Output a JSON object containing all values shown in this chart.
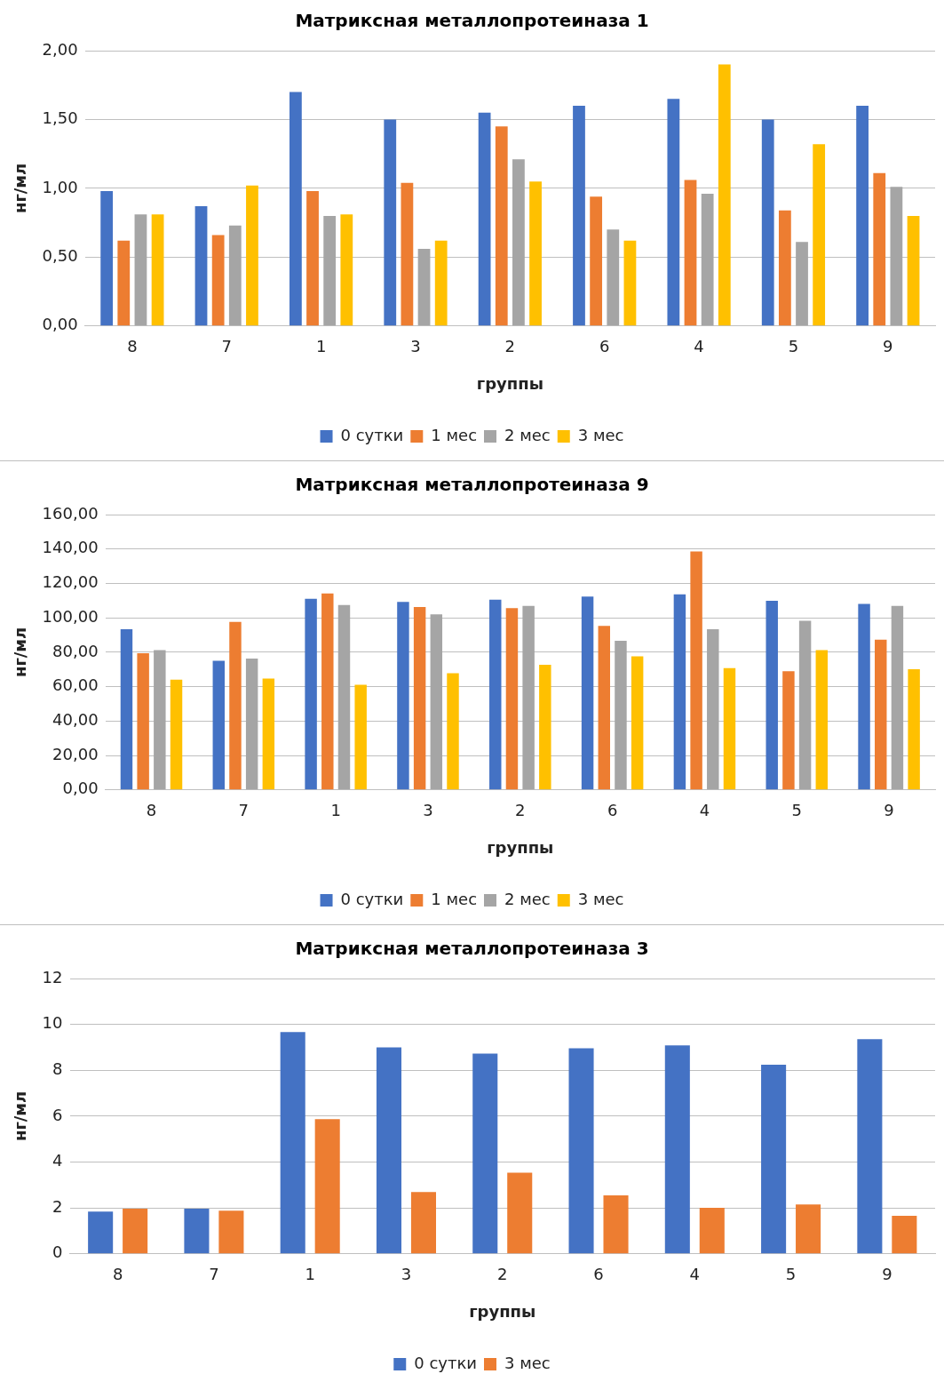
{
  "chart_data": [
    {
      "type": "bar",
      "title": "Матриксная металлопротеиназа 1",
      "xlabel": "группы",
      "ylabel": "нг/мл",
      "categories": [
        "8",
        "7",
        "1",
        "3",
        "2",
        "6",
        "4",
        "5",
        "9"
      ],
      "series": [
        {
          "name": "0 сутки",
          "color": "#4472c4",
          "values": [
            0.98,
            0.87,
            1.7,
            1.5,
            1.55,
            1.6,
            1.65,
            1.5,
            1.6
          ]
        },
        {
          "name": "1 мес",
          "color": "#ed7d31",
          "values": [
            0.62,
            0.66,
            0.98,
            1.04,
            1.45,
            0.94,
            1.06,
            0.84,
            1.11
          ]
        },
        {
          "name": "2 мес",
          "color": "#a5a5a5",
          "values": [
            0.81,
            0.73,
            0.8,
            0.56,
            1.21,
            0.7,
            0.96,
            0.61,
            1.01
          ]
        },
        {
          "name": "3 мес",
          "color": "#ffc000",
          "values": [
            0.81,
            1.02,
            0.81,
            0.62,
            1.05,
            0.62,
            1.9,
            1.32,
            0.8
          ]
        }
      ],
      "ylim": [
        0,
        2
      ],
      "yticks": [
        {
          "value": 0,
          "label": "0,00"
        },
        {
          "value": 0.5,
          "label": "0,50"
        },
        {
          "value": 1,
          "label": "1,00"
        },
        {
          "value": 1.5,
          "label": "1,50"
        },
        {
          "value": 2,
          "label": "2,00"
        }
      ],
      "grid": "y",
      "legend": "bottom"
    },
    {
      "type": "bar",
      "title": "Матриксная металлопротеиназа 9",
      "xlabel": "группы",
      "ylabel": "нг/мл",
      "categories": [
        "8",
        "7",
        "1",
        "3",
        "2",
        "6",
        "4",
        "5",
        "9"
      ],
      "series": [
        {
          "name": "0 сутки",
          "color": "#4472c4",
          "values": [
            93.4,
            75.1,
            111.1,
            109.3,
            110.5,
            112.4,
            113.6,
            109.9,
            108.1
          ]
        },
        {
          "name": "1 мес",
          "color": "#ed7d31",
          "values": [
            79.4,
            97.7,
            114.2,
            106.3,
            105.6,
            95.3,
            138.6,
            69.0,
            87.3
          ]
        },
        {
          "name": "2 мес",
          "color": "#a5a5a5",
          "values": [
            81.2,
            76.3,
            107.5,
            102.0,
            106.9,
            86.7,
            93.4,
            98.3,
            106.9
          ]
        },
        {
          "name": "3 мес",
          "color": "#ffc000",
          "values": [
            64.1,
            64.7,
            61.1,
            67.8,
            72.7,
            77.6,
            70.8,
            81.2,
            70.2
          ]
        }
      ],
      "ylim": [
        0,
        160
      ],
      "yticks": [
        {
          "value": 0,
          "label": "0,00"
        },
        {
          "value": 20,
          "label": "20,00"
        },
        {
          "value": 40,
          "label": "40,00"
        },
        {
          "value": 60,
          "label": "60,00"
        },
        {
          "value": 80,
          "label": "80,00"
        },
        {
          "value": 100,
          "label": "100,00"
        },
        {
          "value": 120,
          "label": "120,00"
        },
        {
          "value": 140,
          "label": "140,00"
        },
        {
          "value": 160,
          "label": "160,00"
        }
      ],
      "grid": "y",
      "legend": "bottom"
    },
    {
      "type": "bar",
      "title": "Матриксная металлопротеиназа 3",
      "xlabel": "группы",
      "ylabel": "нг/мл",
      "categories": [
        "8",
        "7",
        "1",
        "3",
        "2",
        "6",
        "4",
        "5",
        "9"
      ],
      "series": [
        {
          "name": "0 сутки",
          "color": "#4472c4",
          "values": [
            1.84,
            1.97,
            9.67,
            9.0,
            8.73,
            8.96,
            9.09,
            8.24,
            9.36
          ]
        },
        {
          "name": "3 мес",
          "color": "#ed7d31",
          "values": [
            1.97,
            1.88,
            5.87,
            2.69,
            3.54,
            2.55,
            2.01,
            2.15,
            1.66
          ]
        }
      ],
      "ylim": [
        0,
        12
      ],
      "yticks": [
        0,
        2,
        4,
        6,
        8,
        10,
        12
      ],
      "grid": "y",
      "legend": "bottom"
    }
  ]
}
